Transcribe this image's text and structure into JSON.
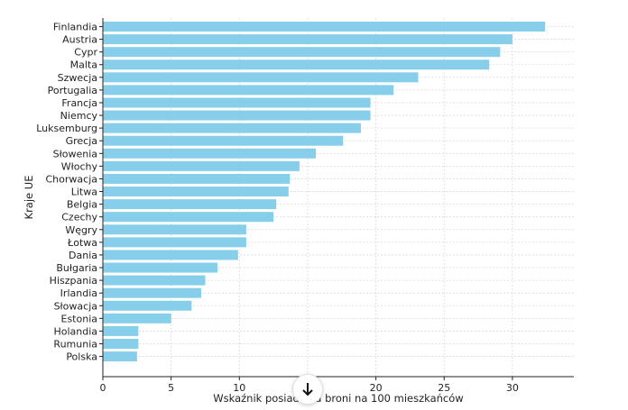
{
  "chart_data": {
    "type": "bar",
    "orientation": "horizontal",
    "title": "",
    "xlabel": "Wskaźnik posiadania broni na 100 mieszkańców",
    "ylabel": "Kraje UE",
    "xlim": [
      0,
      34.5
    ],
    "xticks": [
      0,
      5,
      10,
      15,
      20,
      25,
      30
    ],
    "grid": true,
    "color": "#87ceeb",
    "categories": [
      "Finlandia",
      "Austria",
      "Cypr",
      "Malta",
      "Szwecja",
      "Portugalia",
      "Francja",
      "Niemcy",
      "Luksemburg",
      "Grecja",
      "Słowenia",
      "Włochy",
      "Chorwacja",
      "Litwa",
      "Belgia",
      "Czechy",
      "Węgry",
      "Łotwa",
      "Dania",
      "Bułgaria",
      "Hiszpania",
      "Irlandia",
      "Słowacja",
      "Estonia",
      "Holandia",
      "Rumunia",
      "Polska"
    ],
    "values": [
      32.4,
      30.0,
      29.1,
      28.3,
      23.1,
      21.3,
      19.6,
      19.6,
      18.9,
      17.6,
      15.6,
      14.4,
      13.7,
      13.6,
      12.7,
      12.5,
      10.5,
      10.5,
      9.9,
      8.4,
      7.5,
      7.2,
      6.5,
      5.0,
      2.6,
      2.6,
      2.5
    ]
  },
  "ui": {
    "scroll_icon": "arrow-down-icon"
  }
}
